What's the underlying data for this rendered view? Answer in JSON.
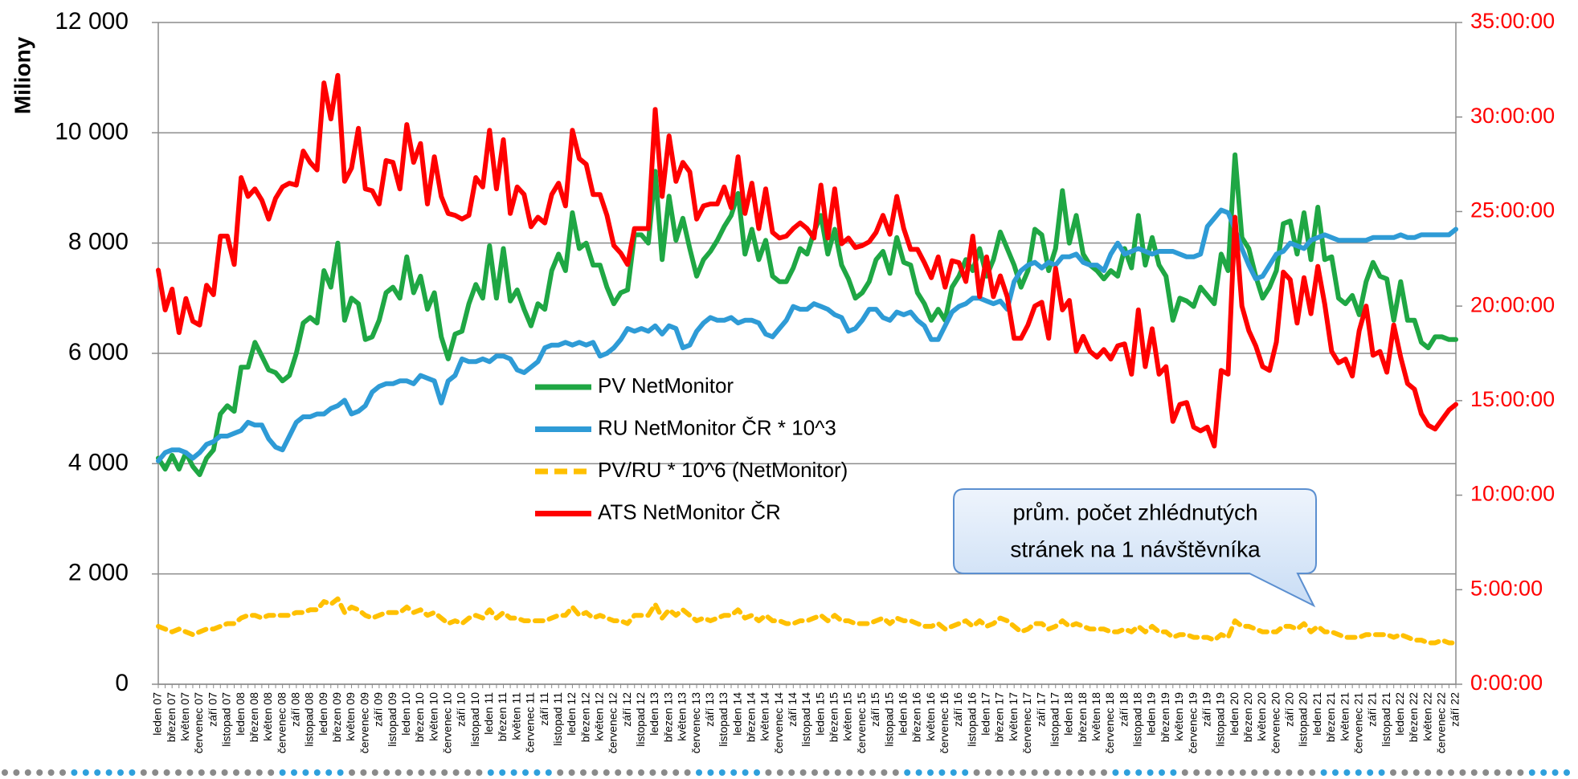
{
  "chart_data": {
    "type": "line",
    "y_label": "Miliony",
    "annotation": [
      "prům. počet zhlédnutých",
      "stránek na 1 návštěvníka"
    ],
    "legend": "center",
    "grid": true,
    "categories": [
      "leden 07",
      null,
      "březen 07",
      null,
      "květen 07",
      null,
      "červenec 07",
      null,
      "září 07",
      null,
      "listopad 07",
      null,
      "leden 08",
      null,
      "březen 08",
      null,
      "květen 08",
      null,
      "červenec 08",
      null,
      "září 08",
      null,
      "listopad 08",
      null,
      "leden 09",
      null,
      "březen 09",
      null,
      "květen 09",
      null,
      "červenec 09",
      null,
      "září 09",
      null,
      "listopad 09",
      null,
      "leden 10",
      null,
      "březen 10",
      null,
      "květen 10",
      null,
      "červenec 10",
      null,
      "září 10",
      null,
      "listopad 10",
      null,
      "leden 11",
      null,
      "březen 11",
      null,
      "květen 11",
      null,
      "červenec 11",
      null,
      "září 11",
      null,
      "listopad 11",
      null,
      "leden 12",
      null,
      "březen 12",
      null,
      "květen 12",
      null,
      "červenec 12",
      null,
      "září 12",
      null,
      "listopad 12",
      null,
      "leden 13",
      null,
      "březen 13",
      null,
      "květen 13",
      null,
      "červenec 13",
      null,
      "září 13",
      null,
      "listopad 13",
      null,
      "leden 14",
      null,
      "březen 14",
      null,
      "květen 14",
      null,
      "červenec 14",
      null,
      "září 14",
      null,
      "listopad 14",
      null,
      "leden 15",
      null,
      "březen 15",
      null,
      "květen 15",
      null,
      "červenec 15",
      null,
      "září 15",
      null,
      "listopad 15",
      null,
      "leden 16",
      null,
      "březen 16",
      null,
      "květen 16",
      null,
      "červenec 16",
      null,
      "září 16",
      null,
      "listopad 16",
      null,
      "leden 17",
      null,
      "březen 17",
      null,
      "květen 17",
      null,
      "červenec 17",
      null,
      "září 17",
      null,
      "listopad 17",
      null,
      "leden 18",
      null,
      "březen 18",
      null,
      "květen 18",
      null,
      "červenec 18",
      null,
      "září 18",
      null,
      "listopad 18",
      null,
      "leden 19",
      null,
      "březen 19",
      null,
      "květen 19",
      null,
      "červenec 19",
      null,
      "září 19",
      null,
      "listopad 19",
      null,
      "leden 20",
      null,
      "březen 20",
      null,
      "květen 20",
      null,
      "červenec 20",
      null,
      "září 20",
      null,
      "listopad 20",
      null,
      "leden 21",
      null,
      "březen 21",
      null,
      "květen 21",
      null,
      "červenec 21",
      null,
      "září 21",
      null,
      "listopad 21",
      null,
      "leden 22",
      null,
      "březen 22",
      null,
      "květen 22",
      null,
      "červenec 22",
      null,
      "září 22"
    ],
    "ylim": [
      0,
      12000
    ],
    "yticks": [
      0,
      {
        "value": 2000,
        "label": "2 000"
      },
      {
        "value": 4000,
        "label": "4 000"
      },
      {
        "value": 6000,
        "label": "6 000"
      },
      {
        "value": 8000,
        "label": "8 000"
      },
      {
        "value": 10000,
        "label": "10 000"
      },
      {
        "value": 12000,
        "label": "12 000"
      }
    ],
    "y2lim": [
      0,
      35
    ],
    "y2ticks": [
      {
        "value": 0,
        "label": "0:00:00"
      },
      {
        "value": 5,
        "label": "5:00:00"
      },
      {
        "value": 10,
        "label": "10:00:00"
      },
      {
        "value": 15,
        "label": "15:00:00"
      },
      {
        "value": 20,
        "label": "20:00:00"
      },
      {
        "value": 25,
        "label": "25:00:00"
      },
      {
        "value": 30,
        "label": "30:00:00"
      },
      {
        "value": 35,
        "label": "35:00:00"
      }
    ],
    "y2color": "#ff0000",
    "series": [
      {
        "name": "PV NetMonitor",
        "color": "#1fa744",
        "style": "solid",
        "values": [
          4100,
          3900,
          4150,
          3900,
          4200,
          3950,
          3800,
          4100,
          4250,
          4900,
          5050,
          4950,
          5750,
          5750,
          6200,
          5950,
          5700,
          5650,
          5500,
          5600,
          6000,
          6550,
          6650,
          6550,
          7500,
          7200,
          8000,
          6600,
          7000,
          6900,
          6250,
          6300,
          6600,
          7100,
          7200,
          7000,
          7750,
          7100,
          7400,
          6800,
          7100,
          6300,
          5900,
          6350,
          6400,
          6900,
          7250,
          7000,
          7950,
          7000,
          7900,
          6950,
          7150,
          6800,
          6500,
          6900,
          6800,
          7500,
          7800,
          7500,
          8550,
          7900,
          8000,
          7600,
          7600,
          7200,
          6900,
          7100,
          7150,
          8150,
          8150,
          8000,
          9300,
          7700,
          8850,
          8050,
          8450,
          7900,
          7400,
          7700,
          7850,
          8050,
          8300,
          8500,
          8900,
          7800,
          8250,
          7700,
          8050,
          7400,
          7300,
          7300,
          7550,
          7900,
          7800,
          8200,
          8500,
          7800,
          8250,
          7600,
          7350,
          7000,
          7100,
          7300,
          7700,
          7850,
          7450,
          8100,
          7650,
          7600,
          7100,
          6900,
          6600,
          6800,
          6600,
          7200,
          7400,
          7700,
          7500,
          7900,
          7400,
          7700,
          8200,
          7900,
          7600,
          7200,
          7500,
          8250,
          8150,
          7500,
          7900,
          8950,
          8000,
          8500,
          7800,
          7600,
          7500,
          7350,
          7500,
          7400,
          7900,
          7550,
          8500,
          7600,
          8100,
          7600,
          7400,
          6600,
          7000,
          6950,
          6850,
          7200,
          7050,
          6900,
          7800,
          7500,
          9600,
          8100,
          7900,
          7400,
          7000,
          7200,
          7500,
          8350,
          8400,
          7800,
          8550,
          7700,
          8650,
          7700,
          7750,
          7000,
          6900,
          7050,
          6700,
          7300,
          7650,
          7400,
          7350,
          6600,
          7300,
          6600,
          6600,
          6200,
          6100,
          6300,
          6300,
          6250,
          6250
        ]
      },
      {
        "name": "RU NetMonitor ČR * 10^3",
        "color": "#2e9bd6",
        "style": "solid",
        "values": [
          4050,
          4200,
          4250,
          4250,
          4200,
          4100,
          4200,
          4350,
          4400,
          4500,
          4500,
          4550,
          4600,
          4750,
          4700,
          4700,
          4450,
          4300,
          4250,
          4500,
          4750,
          4850,
          4850,
          4900,
          4900,
          5000,
          5050,
          5150,
          4900,
          4950,
          5050,
          5300,
          5400,
          5450,
          5450,
          5500,
          5500,
          5450,
          5600,
          5550,
          5500,
          5100,
          5500,
          5600,
          5900,
          5850,
          5850,
          5900,
          5850,
          5950,
          5950,
          5900,
          5700,
          5650,
          5750,
          5850,
          6100,
          6150,
          6150,
          6200,
          6150,
          6200,
          6150,
          6200,
          5950,
          6000,
          6100,
          6250,
          6450,
          6400,
          6450,
          6400,
          6500,
          6350,
          6500,
          6450,
          6100,
          6150,
          6400,
          6550,
          6650,
          6600,
          6600,
          6650,
          6550,
          6600,
          6600,
          6550,
          6350,
          6300,
          6450,
          6600,
          6850,
          6800,
          6800,
          6900,
          6850,
          6800,
          6700,
          6650,
          6400,
          6450,
          6600,
          6800,
          6800,
          6650,
          6600,
          6750,
          6700,
          6750,
          6600,
          6500,
          6250,
          6250,
          6500,
          6750,
          6850,
          6900,
          7000,
          7000,
          6950,
          6900,
          6950,
          6800,
          7300,
          7500,
          7600,
          7650,
          7550,
          7650,
          7600,
          7750,
          7750,
          7800,
          7650,
          7600,
          7600,
          7500,
          7800,
          8000,
          7800,
          7850,
          7900,
          7850,
          7800,
          7850,
          7850,
          7850,
          7800,
          7750,
          7750,
          7800,
          8300,
          8450,
          8600,
          8550,
          8250,
          7900,
          7600,
          7350,
          7400,
          7600,
          7800,
          7850,
          8000,
          7950,
          7900,
          8050,
          8100,
          8150,
          8100,
          8050,
          8050,
          8050,
          8050,
          8050,
          8100,
          8100,
          8100,
          8100,
          8150,
          8100,
          8100,
          8150,
          8150,
          8150,
          8150,
          8150,
          8250
        ]
      },
      {
        "name": "PV/RU * 10^6 (NetMonitor)",
        "color": "#ffc000",
        "style": "dashed",
        "values": [
          1050,
          1000,
          950,
          1000,
          950,
          900,
          950,
          1000,
          1000,
          1050,
          1100,
          1100,
          1200,
          1250,
          1250,
          1200,
          1250,
          1250,
          1250,
          1250,
          1300,
          1300,
          1350,
          1350,
          1500,
          1450,
          1550,
          1300,
          1400,
          1350,
          1250,
          1200,
          1250,
          1300,
          1300,
          1300,
          1400,
          1300,
          1350,
          1250,
          1300,
          1200,
          1100,
          1150,
          1100,
          1200,
          1250,
          1200,
          1350,
          1200,
          1300,
          1200,
          1200,
          1150,
          1150,
          1150,
          1150,
          1200,
          1250,
          1250,
          1400,
          1250,
          1300,
          1200,
          1250,
          1200,
          1150,
          1150,
          1100,
          1250,
          1250,
          1250,
          1450,
          1200,
          1350,
          1250,
          1350,
          1250,
          1150,
          1200,
          1150,
          1200,
          1250,
          1250,
          1350,
          1200,
          1250,
          1150,
          1250,
          1150,
          1150,
          1100,
          1100,
          1150,
          1150,
          1200,
          1250,
          1150,
          1250,
          1150,
          1150,
          1100,
          1100,
          1100,
          1150,
          1200,
          1100,
          1200,
          1150,
          1150,
          1100,
          1050,
          1050,
          1100,
          1000,
          1050,
          1100,
          1150,
          1050,
          1150,
          1050,
          1100,
          1200,
          1150,
          1050,
          950,
          1000,
          1100,
          1100,
          1000,
          1050,
          1150,
          1050,
          1100,
          1050,
          1000,
          1000,
          1000,
          950,
          950,
          1000,
          950,
          1050,
          950,
          1050,
          950,
          950,
          850,
          900,
          900,
          850,
          850,
          850,
          800,
          900,
          850,
          1150,
          1050,
          1050,
          1000,
          950,
          950,
          950,
          1050,
          1050,
          1000,
          1100,
          950,
          1050,
          950,
          950,
          900,
          850,
          850,
          850,
          900,
          900,
          900,
          900,
          850,
          900,
          850,
          800,
          800,
          750,
          750,
          800,
          750,
          750
        ]
      },
      {
        "name": "ATS NetMonitor ČR",
        "color": "#ff0000",
        "style": "solid",
        "axis": "y2",
        "values": [
          21.9,
          19.8,
          20.9,
          18.6,
          20.4,
          19.2,
          19.0,
          21.1,
          20.6,
          23.7,
          23.7,
          22.2,
          26.8,
          25.8,
          26.2,
          25.6,
          24.6,
          25.7,
          26.3,
          26.5,
          26.4,
          28.2,
          27.6,
          27.2,
          31.8,
          29.9,
          32.2,
          26.6,
          27.3,
          29.4,
          26.2,
          26.1,
          25.4,
          27.7,
          27.6,
          26.2,
          29.6,
          27.6,
          28.6,
          25.4,
          27.9,
          25.8,
          24.9,
          24.8,
          24.6,
          24.8,
          26.8,
          26.3,
          29.3,
          26.2,
          28.8,
          24.9,
          26.3,
          25.9,
          24.2,
          24.7,
          24.4,
          25.9,
          26.5,
          25.3,
          29.3,
          27.8,
          27.5,
          25.9,
          25.9,
          24.8,
          23.2,
          22.8,
          22.2,
          24.1,
          24.1,
          24.1,
          30.4,
          25.8,
          29.0,
          26.6,
          27.6,
          27.1,
          24.6,
          25.3,
          25.4,
          25.4,
          26.3,
          25.2,
          27.9,
          24.9,
          26.5,
          24.1,
          26.2,
          23.9,
          23.6,
          23.7,
          24.1,
          24.4,
          24.1,
          23.6,
          26.4,
          23.6,
          26.2,
          23.3,
          23.6,
          23.1,
          23.2,
          23.4,
          23.9,
          24.8,
          23.8,
          25.8,
          24.1,
          23.0,
          23.0,
          22.3,
          21.5,
          22.6,
          21.0,
          22.4,
          22.3,
          21.3,
          23.7,
          20.5,
          22.6,
          20.5,
          21.6,
          20.5,
          18.3,
          18.3,
          19.0,
          20.0,
          20.2,
          18.3,
          22.0,
          19.8,
          20.3,
          17.6,
          18.4,
          17.6,
          17.3,
          17.7,
          17.2,
          17.9,
          18.0,
          16.4,
          19.8,
          16.8,
          18.8,
          16.4,
          16.8,
          13.9,
          14.8,
          14.9,
          13.6,
          13.4,
          13.6,
          12.6,
          16.6,
          16.4,
          24.7,
          20.0,
          18.7,
          17.9,
          16.8,
          16.6,
          18.1,
          21.8,
          21.4,
          19.1,
          21.5,
          19.6,
          22.1,
          20.1,
          17.6,
          17.0,
          17.2,
          16.3,
          18.7,
          20.0,
          17.4,
          17.6,
          16.5,
          19.0,
          17.3,
          15.9,
          15.6,
          14.3,
          13.7,
          13.5,
          14.0,
          14.5,
          14.8
        ]
      }
    ]
  }
}
